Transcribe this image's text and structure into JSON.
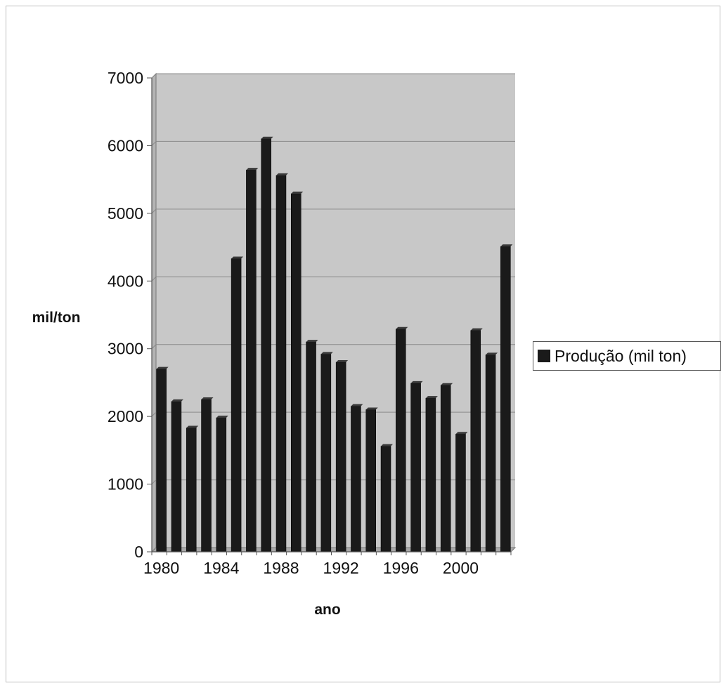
{
  "chart_data": {
    "type": "bar",
    "xlabel": "ano",
    "ylabel": "mil/ton",
    "ylim": [
      0,
      7000
    ],
    "yticks": [
      0,
      1000,
      2000,
      3000,
      4000,
      5000,
      6000,
      7000
    ],
    "x_tick_labels": [
      "1980",
      "1984",
      "1988",
      "1992",
      "1996",
      "2000"
    ],
    "categories": [
      "1980",
      "1981",
      "1982",
      "1983",
      "1984",
      "1985",
      "1986",
      "1987",
      "1988",
      "1989",
      "1990",
      "1991",
      "1992",
      "1993",
      "1994",
      "1995",
      "1996",
      "1997",
      "1998",
      "1999",
      "2000",
      "2001",
      "2002",
      "2003"
    ],
    "series": [
      {
        "name": "Produção (mil ton)",
        "values": [
          2700,
          2220,
          1830,
          2250,
          1980,
          4330,
          5640,
          6100,
          5560,
          5290,
          3100,
          2920,
          2800,
          2150,
          2100,
          1560,
          3290,
          2490,
          2270,
          2460,
          1740,
          3270,
          2910,
          4510
        ]
      }
    ],
    "grid": true,
    "legend_position": "right",
    "colors": {
      "bar": "#1a1a1a",
      "plot_background": "#c8c8c8",
      "gridline": "#8a8a8a"
    }
  }
}
